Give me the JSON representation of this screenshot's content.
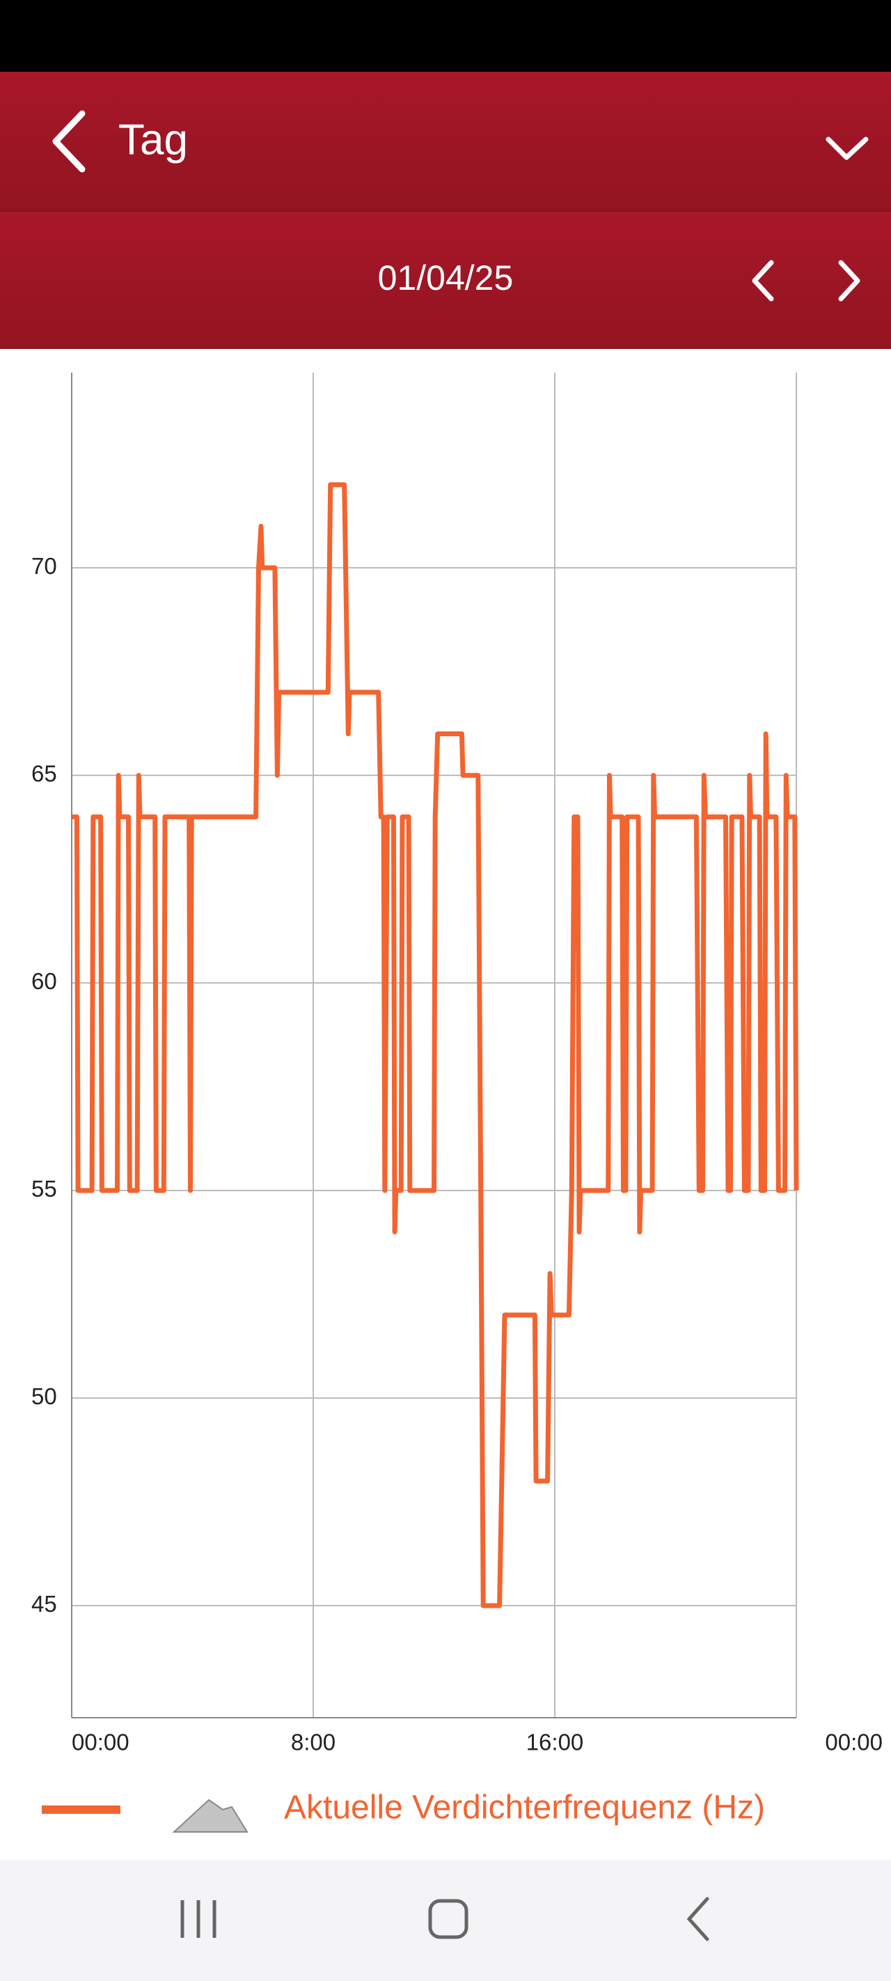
{
  "header": {
    "title": "Tag"
  },
  "date_bar": {
    "date": "01/04/25"
  },
  "chart_data": {
    "type": "line",
    "x": [
      0,
      0.17,
      0.21,
      0.67,
      0.71,
      0.96,
      1.0,
      1.51,
      1.55,
      1.59,
      1.88,
      1.92,
      2.17,
      2.22,
      2.26,
      2.76,
      2.8,
      3.05,
      3.09,
      3.89,
      3.93,
      3.97,
      6.1,
      6.19,
      6.27,
      6.31,
      6.73,
      6.81,
      6.86,
      8.49,
      8.57,
      9.03,
      9.16,
      9.2,
      10.16,
      10.24,
      10.33,
      10.37,
      10.45,
      10.66,
      10.7,
      10.74,
      10.91,
      10.95,
      11.16,
      11.2,
      12.0,
      12.04,
      12.12,
      12.92,
      12.96,
      13.46,
      13.55,
      13.63,
      14.17,
      14.34,
      15.34,
      15.38,
      15.76,
      15.84,
      15.89,
      16.47,
      16.56,
      16.64,
      16.76,
      16.81,
      16.85,
      17.77,
      17.81,
      17.85,
      18.23,
      18.27,
      18.35,
      18.39,
      18.77,
      18.81,
      18.85,
      19.23,
      19.27,
      19.31,
      20.69,
      20.78,
      20.9,
      20.94,
      20.99,
      21.66,
      21.74,
      21.82,
      21.86,
      22.2,
      22.28,
      22.41,
      22.45,
      22.49,
      22.78,
      22.83,
      22.95,
      22.99,
      23.03,
      23.33,
      23.41,
      23.62,
      23.66,
      23.7,
      23.95,
      24.0
    ],
    "series": [
      {
        "name": "Aktuelle Verdichterfrequenz (Hz)",
        "color": "#f26430",
        "values": [
          64,
          64,
          55,
          55,
          64,
          64,
          55,
          55,
          65,
          64,
          64,
          55,
          55,
          65,
          64,
          64,
          55,
          55,
          64,
          64,
          55,
          64,
          64,
          70,
          71,
          70,
          70,
          65,
          67,
          67,
          72,
          72,
          66,
          67,
          67,
          64,
          64,
          55,
          64,
          64,
          54,
          55,
          55,
          64,
          64,
          55,
          55,
          64,
          66,
          66,
          65,
          65,
          55,
          45,
          45,
          52,
          52,
          48,
          48,
          53,
          52,
          52,
          55,
          64,
          64,
          54,
          55,
          55,
          65,
          64,
          64,
          55,
          55,
          64,
          64,
          54,
          55,
          55,
          65,
          64,
          64,
          55,
          55,
          65,
          64,
          64,
          55,
          55,
          64,
          64,
          55,
          55,
          65,
          64,
          64,
          55,
          55,
          66,
          64,
          64,
          55,
          55,
          65,
          64,
          64,
          55
        ]
      }
    ],
    "xlim": [
      0,
      24
    ],
    "xticks": [
      {
        "value": 0,
        "label": "00:00"
      },
      {
        "value": 8,
        "label": "8:00"
      },
      {
        "value": 16,
        "label": "16:00"
      },
      {
        "value": 24,
        "label": "00:00"
      }
    ],
    "ylim": [
      42.3,
      74.7
    ],
    "yticks": [
      45,
      50,
      55,
      60,
      65,
      70
    ],
    "grid": true,
    "legend": "bottom"
  }
}
